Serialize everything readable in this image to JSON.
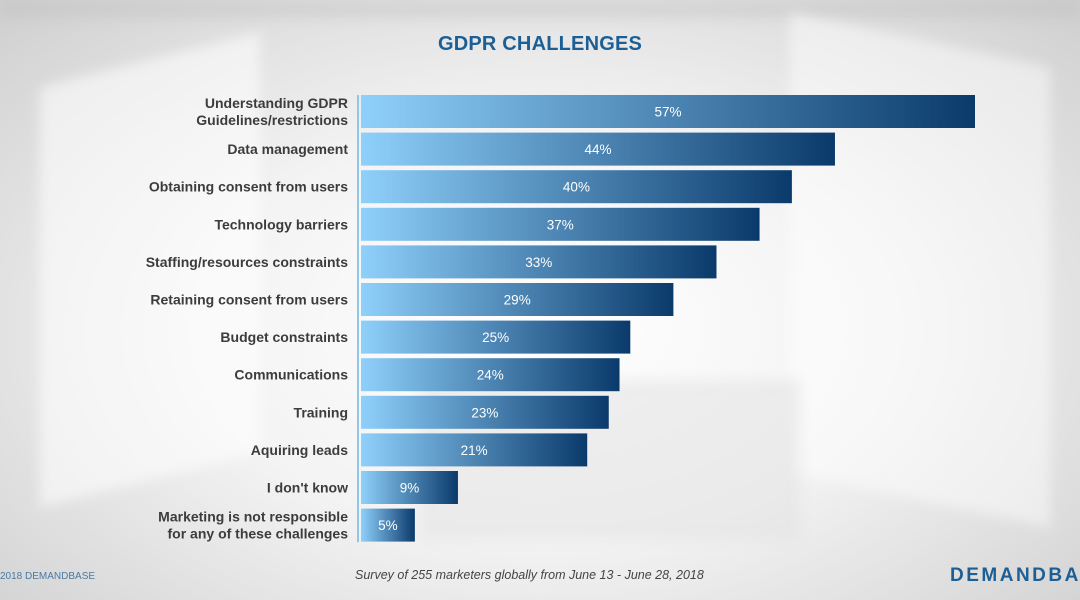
{
  "chart_data": {
    "type": "bar",
    "orientation": "horizontal",
    "title": "GDPR CHALLENGES",
    "categories": [
      [
        "Understanding GDPR",
        "Guidelines/restrictions"
      ],
      [
        "Data management"
      ],
      [
        "Obtaining consent from users"
      ],
      [
        "Technology barriers"
      ],
      [
        "Staffing/resources constraints"
      ],
      [
        "Retaining consent from users"
      ],
      [
        "Budget constraints"
      ],
      [
        "Communications"
      ],
      [
        "Training"
      ],
      [
        "Aquiring leads"
      ],
      [
        "I don't know"
      ],
      [
        "Marketing is not responsible",
        "for any of these challenges"
      ]
    ],
    "values": [
      57,
      44,
      40,
      37,
      33,
      29,
      25,
      24,
      23,
      21,
      9,
      5
    ],
    "value_labels": [
      "57%",
      "44%",
      "40%",
      "37%",
      "33%",
      "29%",
      "25%",
      "24%",
      "23%",
      "21%",
      "9%",
      "5%"
    ],
    "xlim": [
      0,
      57
    ],
    "grid": false,
    "legend": "none",
    "colors": {
      "bar_light": "#8fd0fb",
      "bar_dark": "#0a3a6b",
      "title": "#1d5f94"
    }
  },
  "footer": {
    "copyright": "2018 DEMANDBASE",
    "note": "Survey of 255 marketers globally from June 13 - June 28, 2018",
    "brand": "DEMANDBASE"
  }
}
